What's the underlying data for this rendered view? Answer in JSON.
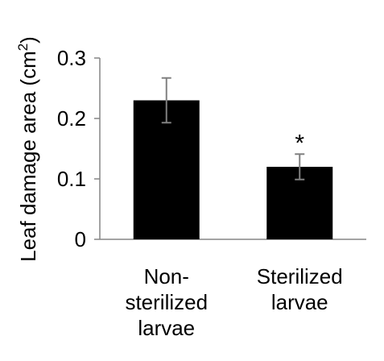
{
  "chart_data": {
    "type": "bar",
    "title": "",
    "xlabel": "",
    "ylabel_main": "Leaf damage area (cm",
    "ylabel_sup": "2",
    "ylabel_close": ")",
    "ylim": [
      0,
      0.3
    ],
    "yticks": [
      "0",
      "0.1",
      "0.2",
      "0.3"
    ],
    "categories": [
      [
        "Non-",
        "sterilized",
        "larvae"
      ],
      [
        "Sterilized",
        "larvae"
      ]
    ],
    "values": [
      0.23,
      0.12
    ],
    "error": [
      0.037,
      0.021
    ],
    "annotations": [
      "",
      "*"
    ],
    "bar_color": "#000000",
    "error_color": "#808080",
    "grid": false
  }
}
